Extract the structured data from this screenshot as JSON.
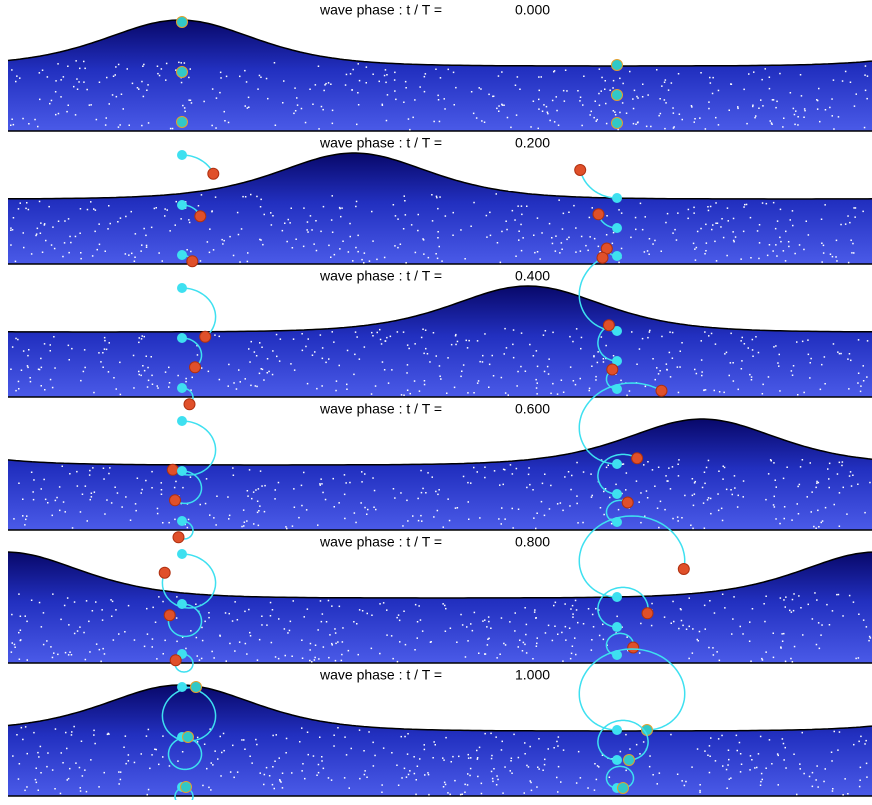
{
  "panels": [
    {
      "label": "wave phase : t / T =",
      "phase": "0.000"
    },
    {
      "label": "wave phase : t / T =",
      "phase": "0.200"
    },
    {
      "label": "wave phase : t / T =",
      "phase": "0.400"
    },
    {
      "label": "wave phase : t / T =",
      "phase": "0.600"
    },
    {
      "label": "wave phase : t / T =",
      "phase": "0.800"
    },
    {
      "label": "wave phase : t / T =",
      "phase": "1.000"
    }
  ]
}
